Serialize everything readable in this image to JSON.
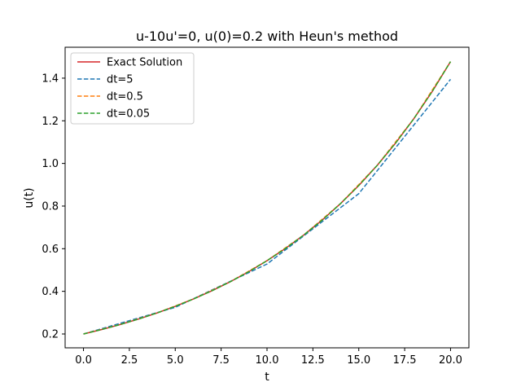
{
  "chart_data": {
    "type": "line",
    "title": "u-10u'=0, u(0)=0.2 with Heun's method",
    "xlabel": "t",
    "ylabel": "u(t)",
    "xlim": [
      -1.0,
      21.0
    ],
    "ylim": [
      0.135,
      1.545
    ],
    "xticks": [
      0.0,
      2.5,
      5.0,
      7.5,
      10.0,
      12.5,
      15.0,
      17.5,
      20.0
    ],
    "xtick_labels": [
      "0.0",
      "2.5",
      "5.0",
      "7.5",
      "10.0",
      "12.5",
      "15.0",
      "17.5",
      "20.0"
    ],
    "yticks": [
      0.2,
      0.4,
      0.6,
      0.8,
      1.0,
      1.2,
      1.4
    ],
    "ytick_labels": [
      "0.2",
      "0.4",
      "0.6",
      "0.8",
      "1.0",
      "1.2",
      "1.4"
    ],
    "grid": false,
    "legend_position": "top-left",
    "series": [
      {
        "name": "Exact Solution",
        "color": "#d62728",
        "dashed": false,
        "x": [
          0,
          1,
          2,
          3,
          4,
          5,
          6,
          7,
          8,
          9,
          10,
          11,
          12,
          13,
          14,
          15,
          16,
          17,
          18,
          19,
          20
        ],
        "y": [
          0.2,
          0.221,
          0.2443,
          0.27,
          0.2984,
          0.3297,
          0.3644,
          0.4028,
          0.4451,
          0.4919,
          0.5437,
          0.6009,
          0.664,
          0.7339,
          0.8111,
          0.8963,
          0.9906,
          1.0948,
          1.2099,
          1.3372,
          1.4778
        ]
      },
      {
        "name": "dt=5",
        "color": "#1f77b4",
        "dashed": true,
        "x": [
          0,
          5,
          10,
          15,
          20
        ],
        "y": [
          0.2,
          0.325,
          0.5281,
          0.8582,
          1.3946
        ]
      },
      {
        "name": "dt=0.5",
        "color": "#ff7f0e",
        "dashed": true,
        "x": [
          0,
          2,
          4,
          6,
          8,
          10,
          12,
          14,
          16,
          18,
          20
        ],
        "y": [
          0.2,
          0.2443,
          0.2984,
          0.3644,
          0.4451,
          0.5436,
          0.6639,
          0.8109,
          0.9904,
          1.2096,
          1.4773
        ]
      },
      {
        "name": "dt=0.05",
        "color": "#2ca02c",
        "dashed": true,
        "x": [
          0,
          1,
          2,
          3,
          4,
          5,
          6,
          7,
          8,
          9,
          10,
          11,
          12,
          13,
          14,
          15,
          16,
          17,
          18,
          19,
          20
        ],
        "y": [
          0.2,
          0.221,
          0.2443,
          0.27,
          0.2984,
          0.3297,
          0.3644,
          0.4028,
          0.4451,
          0.4919,
          0.5437,
          0.6009,
          0.664,
          0.7339,
          0.8111,
          0.8963,
          0.9906,
          1.0948,
          1.2099,
          1.3372,
          1.4778
        ]
      }
    ]
  }
}
